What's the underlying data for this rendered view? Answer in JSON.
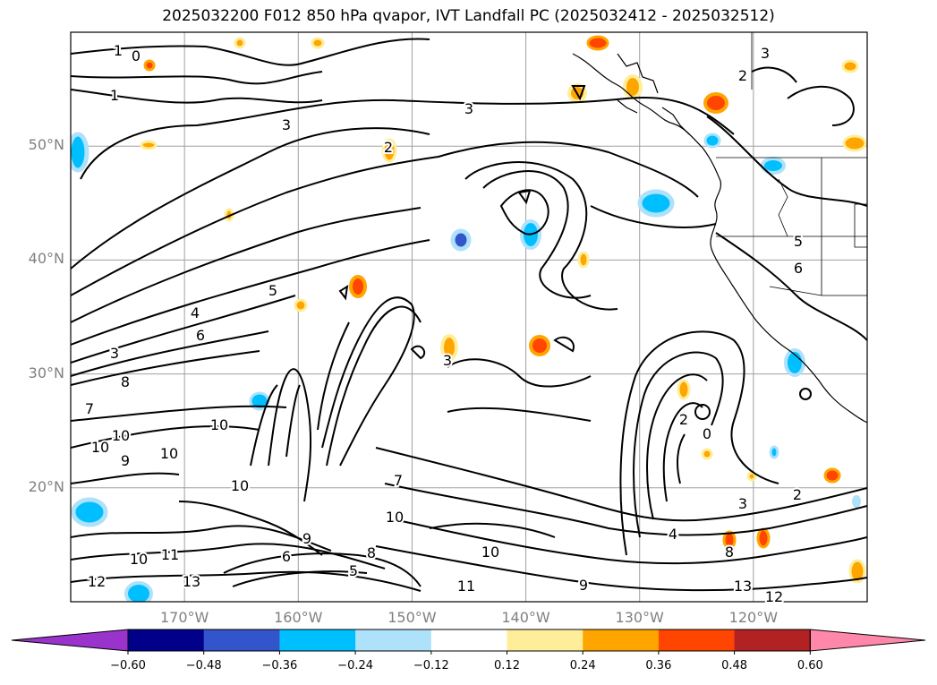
{
  "title": "2025032200 F012 850 hPa qvapor, IVT Landfall PC (2025032412 - 2025032512)",
  "map": {
    "lat_labels": [
      {
        "lat": 50,
        "label": "50°N"
      },
      {
        "lat": 40,
        "label": "40°N"
      },
      {
        "lat": 30,
        "label": "30°N"
      },
      {
        "lat": 20,
        "label": "20°N"
      }
    ],
    "lon_labels": [
      {
        "lon": -170,
        "label": "170°W"
      },
      {
        "lon": -160,
        "label": "160°W"
      },
      {
        "lon": -150,
        "label": "150°W"
      },
      {
        "lon": -140,
        "label": "140°W"
      },
      {
        "lon": -130,
        "label": "130°W"
      },
      {
        "lon": -120,
        "label": "120°W"
      }
    ],
    "grid_color": "#a0a0a0",
    "contour_color": "#000000",
    "contour_labels": [
      "1",
      "0",
      "1",
      "3",
      "3",
      "2",
      "2",
      "3",
      "5",
      "6",
      "5",
      "4",
      "6",
      "3",
      "8",
      "7",
      "10",
      "10",
      "9",
      "10",
      "10",
      "12",
      "13",
      "11",
      "10",
      "11",
      "9",
      "8",
      "6",
      "10",
      "7",
      "5",
      "4",
      "3",
      "2",
      "0",
      "2",
      "3",
      "4",
      "8",
      "13",
      "12",
      "10",
      "11",
      "10",
      "9"
    ]
  },
  "colorbar": {
    "ticks": [
      "−0.60",
      "−0.48",
      "−0.36",
      "−0.24",
      "−0.12",
      "0.12",
      "0.24",
      "0.36",
      "0.48",
      "0.60"
    ],
    "colors": [
      "#9933cc",
      "#00008b",
      "#3355cc",
      "#00bfff",
      "#aee1fa",
      "#ffffff",
      "#ffee99",
      "#ffa500",
      "#ff4500",
      "#b22222",
      "#ff88aa"
    ]
  }
}
